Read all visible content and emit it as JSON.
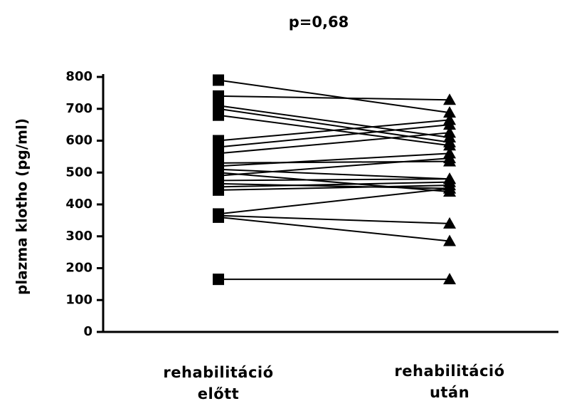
{
  "chart_data": {
    "type": "paired",
    "title": "p=0,68",
    "y_label": "plazma klotho (pg/ml)",
    "categories": [
      "rehabilitáció előtt",
      "rehabilitáció után"
    ],
    "values": [
      [
        790,
        688
      ],
      [
        740,
        728
      ],
      [
        710,
        610
      ],
      [
        700,
        595
      ],
      [
        680,
        585
      ],
      [
        600,
        665
      ],
      [
        580,
        650
      ],
      [
        560,
        625
      ],
      [
        530,
        535
      ],
      [
        520,
        560
      ],
      [
        510,
        480
      ],
      [
        500,
        440
      ],
      [
        490,
        545
      ],
      [
        475,
        480
      ],
      [
        465,
        450
      ],
      [
        455,
        470
      ],
      [
        445,
        460
      ],
      [
        370,
        450
      ],
      [
        365,
        340
      ],
      [
        360,
        285
      ],
      [
        165,
        165
      ]
    ],
    "color": "#000000",
    "ylim": [
      0,
      800
    ],
    "yticks": [
      0,
      100,
      200,
      300,
      400,
      500,
      600,
      700,
      800
    ]
  }
}
